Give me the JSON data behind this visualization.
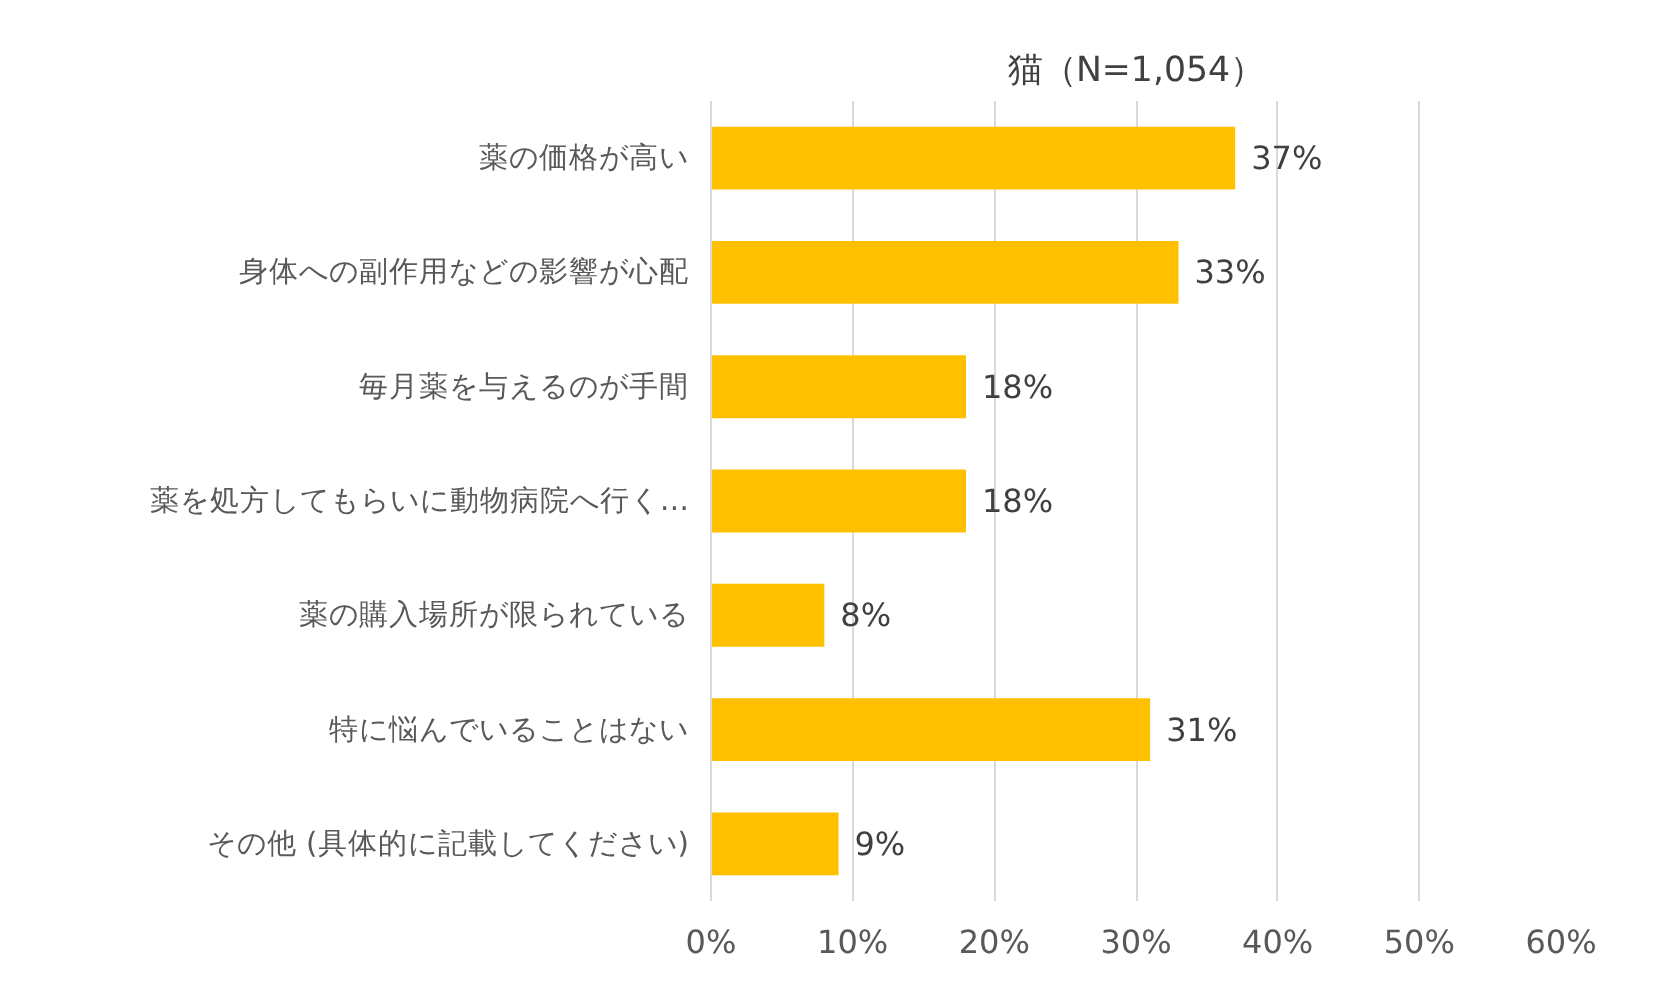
{
  "chart_data": {
    "type": "bar",
    "orientation": "horizontal",
    "title": "猫（N=1,054）",
    "categories": [
      "薬の価格が高い",
      "身体への副作用などの影響が心配",
      "毎月薬を与えるのが手間",
      "薬を処方してもらいに動物病院へ行く…",
      "薬の購入場所が限られている",
      "特に悩んでいることはない",
      "その他 (具体的に記載してください)"
    ],
    "values": [
      37,
      33,
      18,
      18,
      8,
      31,
      9
    ],
    "value_labels": [
      "37%",
      "33%",
      "18%",
      "18%",
      "8%",
      "31%",
      "9%"
    ],
    "color": "#ffc000",
    "xlim": [
      0,
      60
    ],
    "xticks": [
      {
        "value": 0,
        "label": "0%"
      },
      {
        "value": 10,
        "label": "10%"
      },
      {
        "value": 20,
        "label": "20%"
      },
      {
        "value": 30,
        "label": "30%"
      },
      {
        "value": 40,
        "label": "40%"
      },
      {
        "value": 50,
        "label": "50%"
      },
      {
        "value": 60,
        "label": "60%"
      }
    ],
    "grid": "x"
  }
}
